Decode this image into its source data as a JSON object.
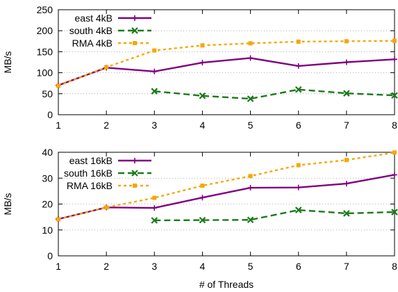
{
  "figure": {
    "xlabel": "# of Threads"
  },
  "chart_data": [
    {
      "type": "line",
      "ylabel": "MB/s",
      "x": [
        1,
        2,
        3,
        4,
        5,
        6,
        7,
        8
      ],
      "xlim": [
        1,
        8
      ],
      "ylim": [
        0,
        250
      ],
      "yticks": [
        0,
        50,
        100,
        150,
        200,
        250
      ],
      "grid": "horizontal-dotted",
      "legend": "top-left",
      "series": [
        {
          "name": "east 4kB",
          "color": "#800080",
          "dash": "solid",
          "marker": "plus",
          "x": [
            1,
            2,
            3,
            4,
            5,
            6,
            7,
            8
          ],
          "values": [
            70,
            112,
            103,
            124,
            135,
            116,
            125,
            132
          ]
        },
        {
          "name": "south 4kB",
          "color": "#1a7a1a",
          "dash": "dashed",
          "marker": "cross",
          "x": [
            3,
            4,
            5,
            6,
            7,
            8
          ],
          "values": [
            56,
            45,
            38,
            60,
            51,
            46
          ]
        },
        {
          "name": "RMA 4kB",
          "color": "#f5a800",
          "dash": "dotted",
          "marker": "square",
          "x": [
            1,
            2,
            3,
            4,
            5,
            6,
            7,
            8
          ],
          "values": [
            69,
            113,
            153,
            165,
            170,
            174,
            175,
            176
          ]
        }
      ]
    },
    {
      "type": "line",
      "ylabel": "MB/s",
      "x": [
        1,
        2,
        3,
        4,
        5,
        6,
        7,
        8
      ],
      "xlim": [
        1,
        8
      ],
      "ylim": [
        0,
        40
      ],
      "yticks": [
        0,
        10,
        20,
        30,
        40
      ],
      "grid": "horizontal-dotted",
      "legend": "top-left",
      "series": [
        {
          "name": "east 16kB",
          "color": "#800080",
          "dash": "solid",
          "marker": "plus",
          "x": [
            1,
            2,
            3,
            4,
            5,
            6,
            7,
            8
          ],
          "values": [
            14.2,
            18.7,
            18.5,
            22.5,
            26.3,
            26.4,
            27.9,
            31.3
          ]
        },
        {
          "name": "south 16kB",
          "color": "#1a7a1a",
          "dash": "dashed",
          "marker": "cross",
          "x": [
            3,
            4,
            5,
            6,
            7,
            8
          ],
          "values": [
            13.7,
            13.8,
            13.9,
            17.7,
            16.4,
            16.9
          ]
        },
        {
          "name": "RMA 16kB",
          "color": "#f5a800",
          "dash": "dotted",
          "marker": "square",
          "x": [
            1,
            2,
            3,
            4,
            5,
            6,
            7,
            8
          ],
          "values": [
            14.1,
            18.7,
            22.4,
            27.1,
            30.8,
            35.0,
            37.0,
            39.9
          ]
        }
      ]
    }
  ]
}
